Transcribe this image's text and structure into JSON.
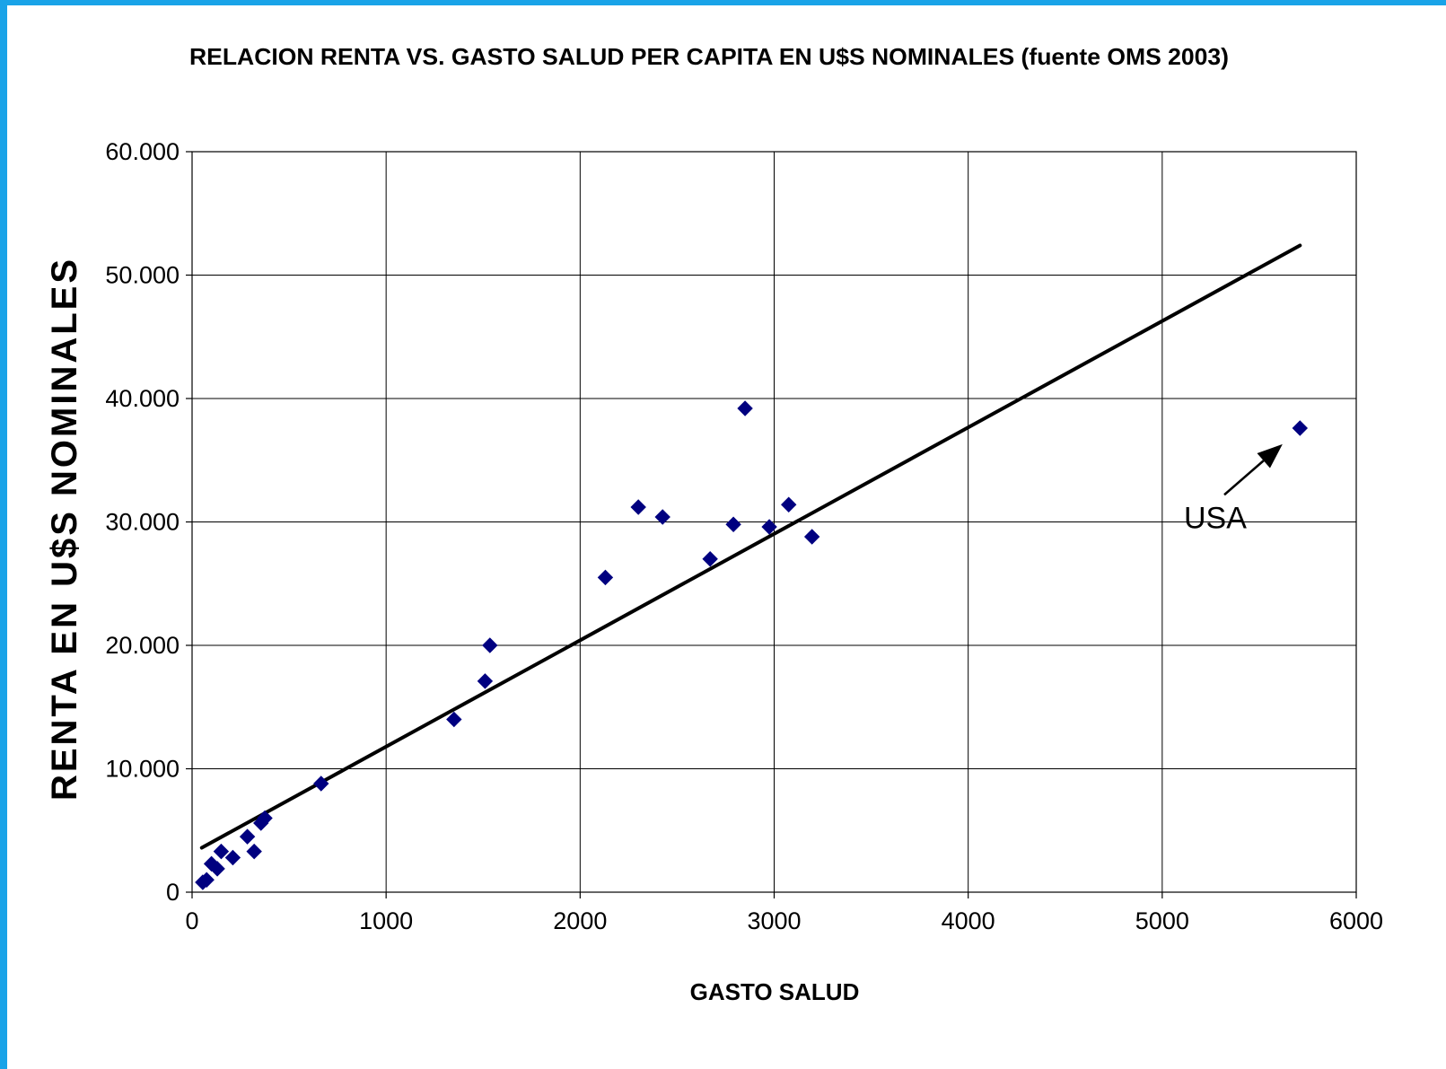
{
  "chart_data": {
    "type": "scatter",
    "title": "RELACION RENTA VS. GASTO SALUD PER CAPITA EN U$S NOMINALES (fuente OMS 2003)",
    "xlabel": "GASTO SALUD",
    "ylabel": "RENTA EN U$S NOMINALES",
    "xlim": [
      0,
      6000
    ],
    "ylim": [
      0,
      60000
    ],
    "x_ticks": [
      0,
      1000,
      2000,
      3000,
      4000,
      5000,
      6000
    ],
    "x_tick_labels": [
      "0",
      "1000",
      "2000",
      "3000",
      "4000",
      "5000",
      "6000"
    ],
    "y_ticks": [
      0,
      10000,
      20000,
      30000,
      40000,
      50000,
      60000
    ],
    "y_tick_labels": [
      "0",
      "10.000",
      "20.000",
      "30.000",
      "40.000",
      "50.000",
      "60.000"
    ],
    "grid": true,
    "legend": "none",
    "marker_color": "#000080",
    "series": [
      {
        "points": [
          {
            "x": 55,
            "y": 800
          },
          {
            "x": 75,
            "y": 1000
          },
          {
            "x": 100,
            "y": 2300
          },
          {
            "x": 130,
            "y": 1900
          },
          {
            "x": 150,
            "y": 3300
          },
          {
            "x": 210,
            "y": 2800
          },
          {
            "x": 285,
            "y": 4500
          },
          {
            "x": 320,
            "y": 3300
          },
          {
            "x": 355,
            "y": 5600
          },
          {
            "x": 375,
            "y": 6000
          },
          {
            "x": 665,
            "y": 8800
          },
          {
            "x": 1350,
            "y": 14000
          },
          {
            "x": 1510,
            "y": 17100
          },
          {
            "x": 1535,
            "y": 20000
          },
          {
            "x": 2130,
            "y": 25500
          },
          {
            "x": 2300,
            "y": 31200
          },
          {
            "x": 2425,
            "y": 30400
          },
          {
            "x": 2670,
            "y": 27000
          },
          {
            "x": 2790,
            "y": 29800
          },
          {
            "x": 2850,
            "y": 39200
          },
          {
            "x": 2975,
            "y": 29600
          },
          {
            "x": 3075,
            "y": 31400
          },
          {
            "x": 3195,
            "y": 28800
          },
          {
            "x": 5710,
            "y": 37600
          }
        ]
      }
    ],
    "trendline": {
      "x": [
        50,
        5710
      ],
      "y": [
        3600,
        52400
      ],
      "color": "#000000"
    },
    "annotations": [
      {
        "text": "USA",
        "arrow_from": {
          "x": 5320,
          "y": 32200
        },
        "arrow_to": {
          "x": 5620,
          "y": 36300
        }
      }
    ]
  }
}
